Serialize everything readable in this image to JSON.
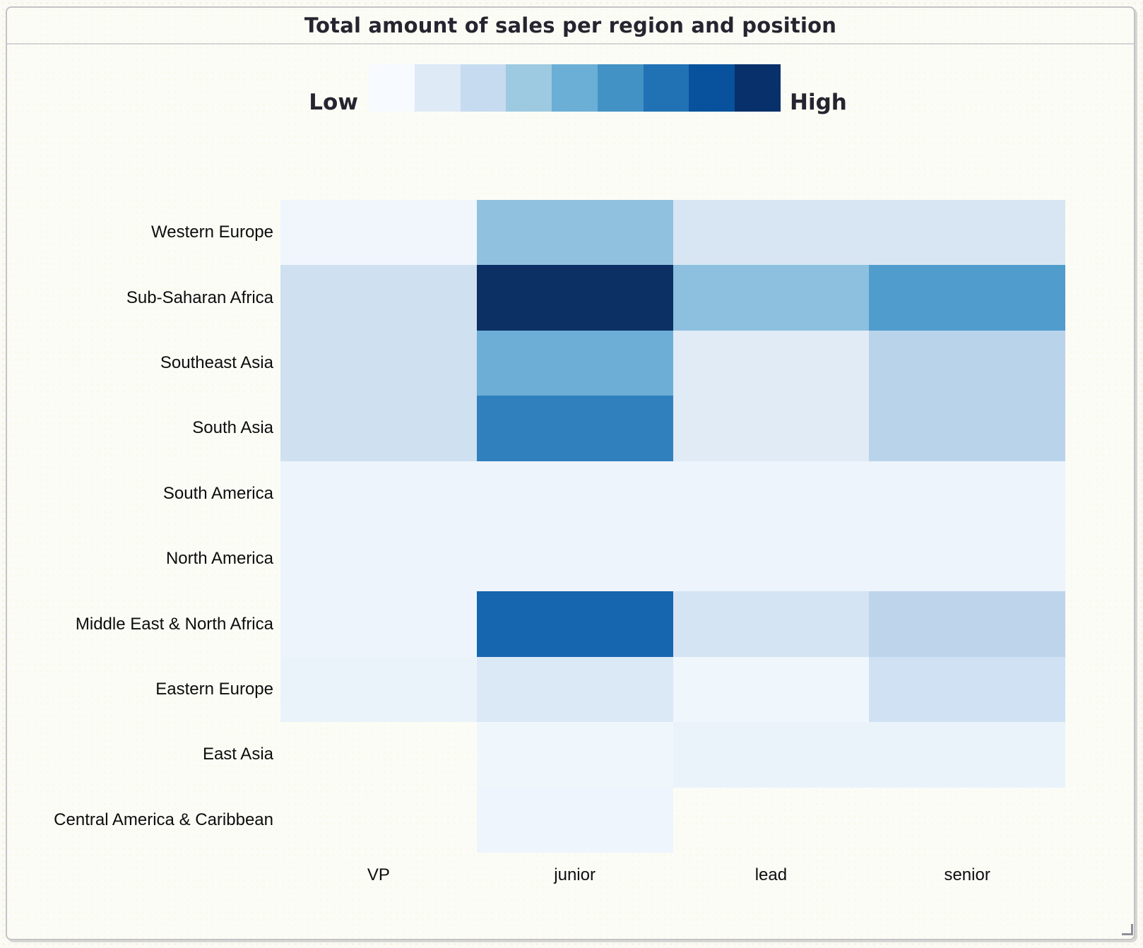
{
  "window": {
    "title": "Total amount of sales per region and position"
  },
  "legend": {
    "low_label": "Low",
    "high_label": "High",
    "swatches": [
      "#f7fbff",
      "#deebf7",
      "#c6dbef",
      "#9ecae1",
      "#6baed6",
      "#4292c6",
      "#2171b5",
      "#08519c",
      "#08306b"
    ]
  },
  "chart_data": {
    "type": "heatmap",
    "title": "Total amount of sales per region and position",
    "xlabel": "",
    "ylabel": "",
    "x_categories": [
      "VP",
      "junior",
      "lead",
      "senior"
    ],
    "y_categories": [
      "Western Europe",
      "Sub-Saharan Africa",
      "Southeast Asia",
      "South Asia",
      "South America",
      "North America",
      "Middle East & North Africa",
      "Eastern Europe",
      "East Asia",
      "Central America & Caribbean"
    ],
    "colorscale": {
      "name": "Blues",
      "min_label": "Low",
      "max_label": "High",
      "colors": [
        "#f7fbff",
        "#deebf7",
        "#c6dbef",
        "#9ecae1",
        "#6baed6",
        "#4292c6",
        "#2171b5",
        "#08519c",
        "#08306b"
      ]
    },
    "legend_position": "top",
    "grid": false,
    "value_scale": "normalized 0 = Low, 1 = High, null = no data",
    "rows": [
      {
        "region": "Western Europe",
        "cells": [
          {
            "position": "VP",
            "intensity": 0.03,
            "color": "#f0f6fb"
          },
          {
            "position": "junior",
            "intensity": 0.42,
            "color": "#90c1de"
          },
          {
            "position": "lead",
            "intensity": 0.15,
            "color": "#d8e6f4"
          },
          {
            "position": "senior",
            "intensity": 0.15,
            "color": "#d8e6f4"
          }
        ]
      },
      {
        "region": "Sub-Saharan Africa",
        "cells": [
          {
            "position": "VP",
            "intensity": 0.19,
            "color": "#cfe0f1"
          },
          {
            "position": "junior",
            "intensity": 1.0,
            "color": "#0c2f64"
          },
          {
            "position": "lead",
            "intensity": 0.43,
            "color": "#8dc0de"
          },
          {
            "position": "senior",
            "intensity": 0.57,
            "color": "#509ccd"
          }
        ]
      },
      {
        "region": "Southeast Asia",
        "cells": [
          {
            "position": "VP",
            "intensity": 0.19,
            "color": "#cfe0f1"
          },
          {
            "position": "junior",
            "intensity": 0.51,
            "color": "#6caed5"
          },
          {
            "position": "lead",
            "intensity": 0.12,
            "color": "#e0ebf6"
          },
          {
            "position": "senior",
            "intensity": 0.3,
            "color": "#b8d3ea"
          }
        ]
      },
      {
        "region": "South Asia",
        "cells": [
          {
            "position": "VP",
            "intensity": 0.19,
            "color": "#cfe0f1"
          },
          {
            "position": "junior",
            "intensity": 0.68,
            "color": "#2f80bc"
          },
          {
            "position": "lead",
            "intensity": 0.12,
            "color": "#e0ebf6"
          },
          {
            "position": "senior",
            "intensity": 0.3,
            "color": "#b8d3ea"
          }
        ]
      },
      {
        "region": "South America",
        "cells": [
          {
            "position": "VP",
            "intensity": 0.05,
            "color": "#edf4fb"
          },
          {
            "position": "junior",
            "intensity": 0.05,
            "color": "#edf4fb"
          },
          {
            "position": "lead",
            "intensity": 0.05,
            "color": "#edf4fb"
          },
          {
            "position": "senior",
            "intensity": 0.05,
            "color": "#edf4fb"
          }
        ]
      },
      {
        "region": "North America",
        "cells": [
          {
            "position": "VP",
            "intensity": 0.05,
            "color": "#edf4fb"
          },
          {
            "position": "junior",
            "intensity": 0.05,
            "color": "#edf4fb"
          },
          {
            "position": "lead",
            "intensity": 0.05,
            "color": "#edf4fb"
          },
          {
            "position": "senior",
            "intensity": 0.05,
            "color": "#edf4fb"
          }
        ]
      },
      {
        "region": "Middle East & North Africa",
        "cells": [
          {
            "position": "VP",
            "intensity": 0.05,
            "color": "#edf4fb"
          },
          {
            "position": "junior",
            "intensity": 0.79,
            "color": "#1566ae"
          },
          {
            "position": "lead",
            "intensity": 0.16,
            "color": "#d4e4f3"
          },
          {
            "position": "senior",
            "intensity": 0.28,
            "color": "#bdd4eb"
          }
        ]
      },
      {
        "region": "Eastern Europe",
        "cells": [
          {
            "position": "VP",
            "intensity": 0.06,
            "color": "#ebf3fa"
          },
          {
            "position": "junior",
            "intensity": 0.13,
            "color": "#dbe8f5"
          },
          {
            "position": "lead",
            "intensity": 0.03,
            "color": "#eff6fc"
          },
          {
            "position": "senior",
            "intensity": 0.19,
            "color": "#cfe1f2"
          }
        ]
      },
      {
        "region": "East Asia",
        "cells": [
          {
            "position": "VP",
            "intensity": null,
            "color": null
          },
          {
            "position": "junior",
            "intensity": 0.03,
            "color": "#eff6fc"
          },
          {
            "position": "lead",
            "intensity": 0.07,
            "color": "#eaf2fa"
          },
          {
            "position": "senior",
            "intensity": 0.07,
            "color": "#eaf2fa"
          }
        ]
      },
      {
        "region": "Central America & Caribbean",
        "cells": [
          {
            "position": "VP",
            "intensity": null,
            "color": null
          },
          {
            "position": "junior",
            "intensity": 0.04,
            "color": "#eef5fc"
          },
          {
            "position": "lead",
            "intensity": null,
            "color": null
          },
          {
            "position": "senior",
            "intensity": null,
            "color": null
          }
        ]
      }
    ]
  }
}
